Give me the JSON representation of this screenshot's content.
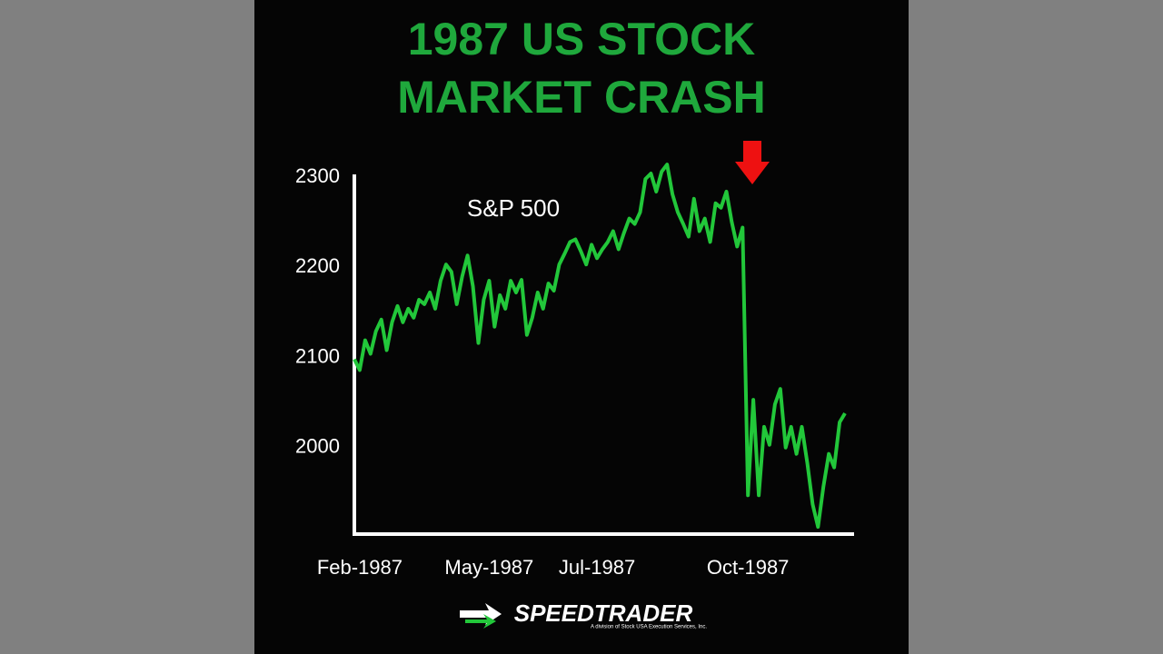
{
  "chart_data": {
    "type": "line",
    "title": [
      "1987 US STOCK",
      "MARKET CRASH"
    ],
    "annotation": "S&P 500",
    "categories": [
      null,
      "Feb-1987",
      null,
      null,
      null,
      null,
      null,
      null,
      null,
      null,
      null,
      null,
      null,
      null,
      null,
      null,
      null,
      null,
      null,
      null,
      null,
      null,
      null,
      null,
      null,
      "May-1987",
      null,
      null,
      null,
      null,
      null,
      null,
      null,
      null,
      null,
      null,
      null,
      null,
      null,
      null,
      null,
      null,
      null,
      null,
      null,
      "Jul-1987",
      null,
      null,
      null,
      null,
      null,
      null,
      null,
      null,
      null,
      null,
      null,
      null,
      null,
      null,
      null,
      null,
      null,
      null,
      null,
      null,
      null,
      null,
      null,
      null,
      null,
      null,
      null,
      "Oct-1987",
      null,
      null,
      null,
      null,
      null,
      null,
      null,
      null,
      null,
      null,
      null,
      null,
      null,
      null,
      null,
      null,
      null,
      null
    ],
    "series": [
      {
        "name": "S&P 500",
        "color": "#22c73a",
        "values": [
          2098,
          2086,
          2119,
          2104,
          2129,
          2142,
          2108,
          2139,
          2157,
          2139,
          2154,
          2144,
          2164,
          2159,
          2172,
          2154,
          2185,
          2203,
          2195,
          2159,
          2190,
          2213,
          2179,
          2116,
          2164,
          2185,
          2134,
          2169,
          2154,
          2185,
          2172,
          2186,
          2125,
          2144,
          2172,
          2154,
          2182,
          2174,
          2203,
          2215,
          2228,
          2231,
          2218,
          2203,
          2225,
          2210,
          2220,
          2228,
          2240,
          2220,
          2238,
          2254,
          2248,
          2261,
          2298,
          2304,
          2284,
          2306,
          2314,
          2281,
          2261,
          2248,
          2234,
          2276,
          2240,
          2254,
          2228,
          2271,
          2266,
          2284,
          2250,
          2223,
          2244,
          1947,
          2053,
          1947,
          2023,
          2003,
          2048,
          2065,
          2000,
          2023,
          1993,
          2023,
          1983,
          1937,
          1912,
          1957,
          1993,
          1978,
          2028,
          2038
        ]
      }
    ],
    "ylim": [
      1904,
      2303
    ],
    "yticks": [
      2000,
      2100,
      2200,
      2300
    ]
  },
  "logo": {
    "name": "SPEEDTRADER",
    "tagline": "A division of Stock USA Execution Services, Inc."
  }
}
